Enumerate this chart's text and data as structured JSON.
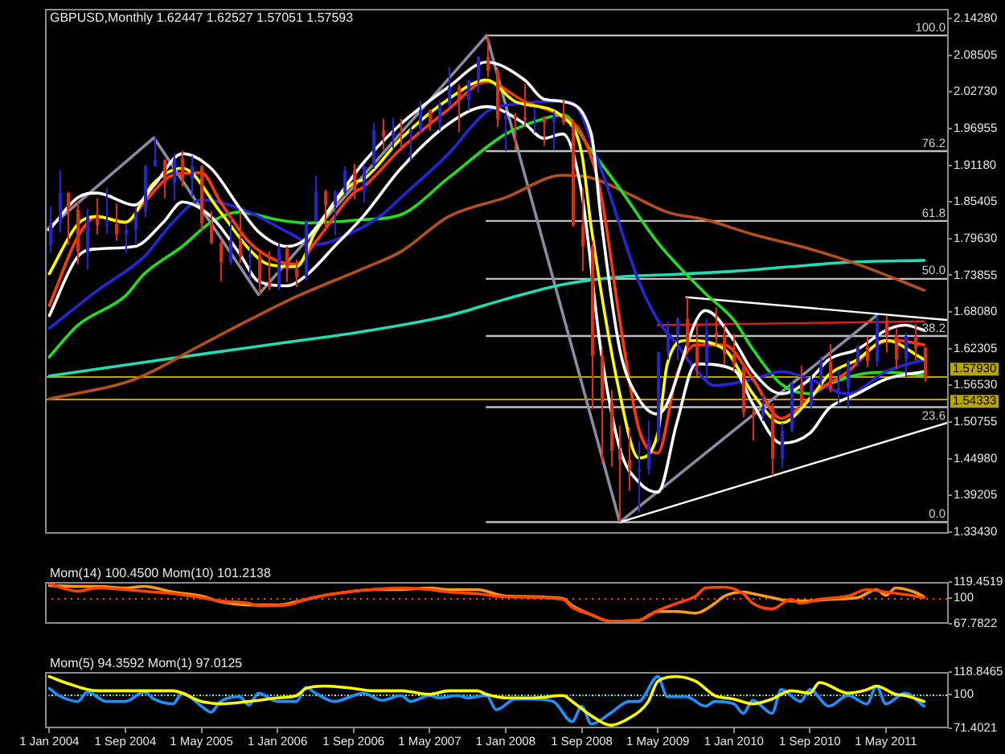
{
  "chart_data": [
    {
      "type": "candlestick",
      "title": "GBPUSD,Monthly 1.62447 1.62527 1.57051 1.57593",
      "x": [
        "2004-01",
        "2004-02",
        "2004-03",
        "2004-04",
        "2004-05",
        "2004-06",
        "2004-07",
        "2004-08",
        "2004-09",
        "2004-10",
        "2004-11",
        "2004-12",
        "2005-01",
        "2005-02",
        "2005-03",
        "2005-04",
        "2005-05",
        "2005-06",
        "2005-07",
        "2005-08",
        "2005-09",
        "2005-10",
        "2005-11",
        "2005-12",
        "2006-01",
        "2006-02",
        "2006-03",
        "2006-04",
        "2006-05",
        "2006-06",
        "2006-07",
        "2006-08",
        "2006-09",
        "2006-10",
        "2006-11",
        "2006-12",
        "2007-01",
        "2007-02",
        "2007-03",
        "2007-04",
        "2007-05",
        "2007-06",
        "2007-07",
        "2007-08",
        "2007-09",
        "2007-10",
        "2007-11",
        "2007-12",
        "2008-01",
        "2008-02",
        "2008-03",
        "2008-04",
        "2008-05",
        "2008-06",
        "2008-07",
        "2008-08",
        "2008-09",
        "2008-10",
        "2008-11",
        "2008-12",
        "2009-01",
        "2009-02",
        "2009-03",
        "2009-04",
        "2009-05",
        "2009-06",
        "2009-07",
        "2009-08",
        "2009-09",
        "2009-10",
        "2009-11",
        "2009-12",
        "2010-01",
        "2010-02",
        "2010-03",
        "2010-04",
        "2010-05",
        "2010-06",
        "2010-07",
        "2010-08",
        "2010-09",
        "2010-10",
        "2010-11",
        "2010-12",
        "2011-01",
        "2011-02",
        "2011-03",
        "2011-04",
        "2011-05",
        "2011-06",
        "2011-07",
        "2011-08",
        "2011-09"
      ],
      "ohlc": [
        [
          1.786,
          1.847,
          1.774,
          1.821
        ],
        [
          1.821,
          1.904,
          1.806,
          1.868
        ],
        [
          1.868,
          1.87,
          1.786,
          1.842
        ],
        [
          1.842,
          1.856,
          1.756,
          1.775
        ],
        [
          1.775,
          1.843,
          1.748,
          1.832
        ],
        [
          1.832,
          1.86,
          1.803,
          1.817
        ],
        [
          1.817,
          1.876,
          1.804,
          1.819
        ],
        [
          1.819,
          1.851,
          1.793,
          1.803
        ],
        [
          1.803,
          1.82,
          1.774,
          1.81
        ],
        [
          1.81,
          1.845,
          1.786,
          1.839
        ],
        [
          1.839,
          1.912,
          1.83,
          1.91
        ],
        [
          1.91,
          1.955,
          1.909,
          1.92
        ],
        [
          1.92,
          1.921,
          1.86,
          1.884
        ],
        [
          1.884,
          1.93,
          1.856,
          1.922
        ],
        [
          1.922,
          1.935,
          1.878,
          1.89
        ],
        [
          1.89,
          1.927,
          1.863,
          1.91
        ],
        [
          1.91,
          1.912,
          1.81,
          1.82
        ],
        [
          1.82,
          1.839,
          1.787,
          1.79
        ],
        [
          1.79,
          1.795,
          1.729,
          1.759
        ],
        [
          1.759,
          1.829,
          1.755,
          1.794
        ],
        [
          1.794,
          1.839,
          1.758,
          1.768
        ],
        [
          1.768,
          1.787,
          1.732,
          1.77
        ],
        [
          1.77,
          1.774,
          1.708,
          1.727
        ],
        [
          1.727,
          1.776,
          1.715,
          1.72
        ],
        [
          1.72,
          1.788,
          1.715,
          1.78
        ],
        [
          1.78,
          1.784,
          1.728,
          1.748
        ],
        [
          1.748,
          1.763,
          1.72,
          1.736
        ],
        [
          1.736,
          1.826,
          1.731,
          1.824
        ],
        [
          1.824,
          1.895,
          1.823,
          1.871
        ],
        [
          1.871,
          1.873,
          1.81,
          1.849
        ],
        [
          1.849,
          1.872,
          1.802,
          1.869
        ],
        [
          1.869,
          1.91,
          1.864,
          1.904
        ],
        [
          1.904,
          1.914,
          1.858,
          1.872
        ],
        [
          1.872,
          1.913,
          1.852,
          1.91
        ],
        [
          1.91,
          1.979,
          1.906,
          1.967
        ],
        [
          1.967,
          1.985,
          1.936,
          1.958
        ],
        [
          1.958,
          1.986,
          1.938,
          1.964
        ],
        [
          1.964,
          1.985,
          1.935,
          1.963
        ],
        [
          1.963,
          1.972,
          1.918,
          1.968
        ],
        [
          1.968,
          2.013,
          1.962,
          1.999
        ],
        [
          1.999,
          2.0,
          1.966,
          1.979
        ],
        [
          1.979,
          2.013,
          1.966,
          2.007
        ],
        [
          2.007,
          2.066,
          2.003,
          2.034
        ],
        [
          2.034,
          2.039,
          1.964,
          2.015
        ],
        [
          2.015,
          2.046,
          1.998,
          2.045
        ],
        [
          2.045,
          2.084,
          2.025,
          2.082
        ],
        [
          2.082,
          2.116,
          2.05,
          2.06
        ],
        [
          2.06,
          2.066,
          1.972,
          1.984
        ],
        [
          1.984,
          1.995,
          1.934,
          1.99
        ],
        [
          1.99,
          1.994,
          1.936,
          1.986
        ],
        [
          1.986,
          2.04,
          1.972,
          1.984
        ],
        [
          1.984,
          2.002,
          1.963,
          1.986
        ],
        [
          1.986,
          1.989,
          1.942,
          1.979
        ],
        [
          1.979,
          1.997,
          1.935,
          1.99
        ],
        [
          1.99,
          2.016,
          1.975,
          1.979
        ],
        [
          1.979,
          1.984,
          1.815,
          1.817
        ],
        [
          1.817,
          1.876,
          1.745,
          1.784
        ],
        [
          1.784,
          1.793,
          1.528,
          1.612
        ],
        [
          1.612,
          1.623,
          1.442,
          1.539
        ],
        [
          1.539,
          1.558,
          1.437,
          1.462
        ],
        [
          1.462,
          1.502,
          1.35,
          1.448
        ],
        [
          1.448,
          1.499,
          1.399,
          1.432
        ],
        [
          1.432,
          1.477,
          1.365,
          1.433
        ],
        [
          1.433,
          1.51,
          1.425,
          1.479
        ],
        [
          1.479,
          1.619,
          1.476,
          1.617
        ],
        [
          1.617,
          1.666,
          1.606,
          1.645
        ],
        [
          1.645,
          1.672,
          1.605,
          1.67
        ],
        [
          1.67,
          1.704,
          1.618,
          1.627
        ],
        [
          1.627,
          1.664,
          1.58,
          1.598
        ],
        [
          1.598,
          1.67,
          1.571,
          1.648
        ],
        [
          1.648,
          1.688,
          1.628,
          1.644
        ],
        [
          1.644,
          1.659,
          1.597,
          1.615
        ],
        [
          1.615,
          1.646,
          1.588,
          1.598
        ],
        [
          1.598,
          1.599,
          1.515,
          1.523
        ],
        [
          1.523,
          1.529,
          1.478,
          1.517
        ],
        [
          1.517,
          1.55,
          1.509,
          1.532
        ],
        [
          1.532,
          1.537,
          1.423,
          1.45
        ],
        [
          1.45,
          1.506,
          1.435,
          1.494
        ],
        [
          1.494,
          1.57,
          1.491,
          1.568
        ],
        [
          1.568,
          1.596,
          1.533,
          1.535
        ],
        [
          1.535,
          1.581,
          1.53,
          1.574
        ],
        [
          1.574,
          1.61,
          1.565,
          1.602
        ],
        [
          1.602,
          1.63,
          1.554,
          1.558
        ],
        [
          1.558,
          1.59,
          1.535,
          1.561
        ],
        [
          1.561,
          1.606,
          1.53,
          1.602
        ],
        [
          1.602,
          1.628,
          1.595,
          1.626
        ],
        [
          1.626,
          1.642,
          1.594,
          1.603
        ],
        [
          1.603,
          1.675,
          1.595,
          1.668
        ],
        [
          1.668,
          1.675,
          1.617,
          1.644
        ],
        [
          1.644,
          1.655,
          1.591,
          1.606
        ],
        [
          1.606,
          1.648,
          1.578,
          1.643
        ],
        [
          1.643,
          1.662,
          1.605,
          1.624
        ],
        [
          1.62447,
          1.62527,
          1.57051,
          1.57593
        ]
      ],
      "colors": [
        "#2424d0",
        "#2424d0",
        "#e02a12",
        "#e02a12",
        "#2424d0",
        "#e02a12",
        "#2424d0",
        "#e02a12",
        "#2424d0",
        "#2424d0",
        "#2424d0",
        "#2424d0",
        "#e02a12",
        "#2424d0",
        "#e02a12",
        "#2424d0",
        "#e02a12",
        "#e02a12",
        "#e02a12",
        "#2424d0",
        "#e02a12",
        "#2424d0",
        "#e02a12",
        "#e02a12",
        "#2424d0",
        "#e02a12",
        "#e02a12",
        "#2424d0",
        "#2424d0",
        "#e02a12",
        "#2424d0",
        "#2424d0",
        "#e02a12",
        "#2424d0",
        "#2424d0",
        "#e02a12",
        "#2424d0",
        "#e02a12",
        "#2424d0",
        "#2424d0",
        "#e02a12",
        "#2424d0",
        "#2424d0",
        "#e02a12",
        "#2424d0",
        "#2424d0",
        "#e02a12",
        "#e02a12",
        "#2424d0",
        "#e02a12",
        "#e02a12",
        "#2424d0",
        "#e02a12",
        "#2424d0",
        "#e02a12",
        "#e02a12",
        "#e02a12",
        "#e02a12",
        "#e02a12",
        "#e02a12",
        "#e02a12",
        "#e02a12",
        "#2424d0",
        "#2424d0",
        "#2424d0",
        "#2424d0",
        "#2424d0",
        "#e02a12",
        "#e02a12",
        "#2424d0",
        "#e02a12",
        "#e02a12",
        "#e02a12",
        "#e02a12",
        "#e02a12",
        "#2424d0",
        "#e02a12",
        "#2424d0",
        "#2424d0",
        "#e02a12",
        "#2424d0",
        "#2424d0",
        "#e02a12",
        "#2424d0",
        "#2424d0",
        "#2424d0",
        "#e02a12",
        "#2424d0",
        "#e02a12",
        "#e02a12",
        "#2424d0",
        "#e02a12",
        "#e02a12"
      ],
      "series": [
        {
          "type": "line",
          "color": "#ffffff",
          "x": [
            "2004-01",
            "2004-04",
            "2004-06",
            "2004-10",
            "2004-12",
            "2005-03",
            "2005-06",
            "2005-09",
            "2005-11",
            "2006-02",
            "2006-04",
            "2006-07",
            "2006-10",
            "2007-02",
            "2007-07",
            "2007-11",
            "2008-03",
            "2008-05",
            "2008-07",
            "2008-10",
            "2008-11",
            "2009-01",
            "2009-03",
            "2009-05",
            "2009-10",
            "2010-01",
            "2010-03",
            "2010-06",
            "2010-09",
            "2010-11",
            "2011-02",
            "2011-05",
            "2011-07",
            "2011-09"
          ],
          "values": [
            1.81,
            1.861,
            1.868,
            1.849,
            1.88,
            1.93,
            1.907,
            1.845,
            1.807,
            1.784,
            1.796,
            1.854,
            1.915,
            1.977,
            2.035,
            2.074,
            2.046,
            2.016,
            2.012,
            1.961,
            1.831,
            1.622,
            1.544,
            1.52,
            1.683,
            1.636,
            1.587,
            1.552,
            1.575,
            1.606,
            1.622,
            1.652,
            1.66,
            1.652
          ]
        },
        {
          "type": "line",
          "color": "#ffffff",
          "x": [
            "2004-01",
            "2004-04",
            "2004-06",
            "2004-10",
            "2005-01",
            "2005-03",
            "2005-06",
            "2005-09",
            "2005-11",
            "2006-02",
            "2006-04",
            "2006-07",
            "2006-10",
            "2007-02",
            "2007-07",
            "2007-11",
            "2008-03",
            "2008-05",
            "2008-07",
            "2008-09",
            "2008-11",
            "2009-01",
            "2009-03",
            "2009-05",
            "2009-07",
            "2009-09",
            "2010-01",
            "2010-03",
            "2010-06",
            "2010-09",
            "2010-11",
            "2011-02",
            "2011-05",
            "2011-09"
          ],
          "values": [
            1.675,
            1.768,
            1.78,
            1.784,
            1.822,
            1.854,
            1.831,
            1.773,
            1.729,
            1.722,
            1.738,
            1.784,
            1.831,
            1.907,
            1.977,
            2.004,
            1.977,
            1.954,
            1.961,
            1.868,
            1.622,
            1.466,
            1.413,
            1.397,
            1.506,
            1.599,
            1.59,
            1.536,
            1.474,
            1.49,
            1.529,
            1.552,
            1.575,
            1.587
          ]
        },
        {
          "type": "line",
          "color": "#ffff00",
          "x": [
            "2004-01",
            "2004-04",
            "2004-06",
            "2004-09",
            "2004-12",
            "2005-03",
            "2005-07",
            "2005-10",
            "2005-12",
            "2006-03",
            "2006-05",
            "2006-09",
            "2006-10",
            "2007-02",
            "2007-07",
            "2007-11",
            "2008-02",
            "2008-07",
            "2008-09",
            "2008-10",
            "2009-01",
            "2009-03",
            "2009-05",
            "2009-06",
            "2009-08",
            "2009-12",
            "2010-03",
            "2010-06",
            "2010-09",
            "2010-11",
            "2011-02",
            "2011-05",
            "2011-09"
          ],
          "values": [
            1.741,
            1.819,
            1.831,
            1.822,
            1.884,
            1.907,
            1.838,
            1.78,
            1.756,
            1.752,
            1.807,
            1.884,
            1.889,
            1.954,
            2.016,
            2.046,
            2.012,
            1.988,
            1.93,
            1.814,
            1.552,
            1.451,
            1.49,
            1.599,
            1.636,
            1.622,
            1.552,
            1.506,
            1.544,
            1.582,
            1.606,
            1.636,
            1.606
          ]
        },
        {
          "type": "line",
          "color": "#ff3a0a",
          "x": [
            "2004-01",
            "2004-04",
            "2004-06",
            "2004-09",
            "2004-11",
            "2005-02",
            "2005-05",
            "2005-07",
            "2005-10",
            "2006-01",
            "2006-03",
            "2006-05",
            "2006-09",
            "2006-10",
            "2007-02",
            "2007-07",
            "2007-11",
            "2008-03",
            "2008-07",
            "2008-09",
            "2008-11",
            "2009-01",
            "2009-03",
            "2009-05",
            "2009-07",
            "2009-09",
            "2009-12",
            "2010-03",
            "2010-06",
            "2010-07",
            "2010-10",
            "2011-01",
            "2011-04",
            "2011-06",
            "2011-09"
          ],
          "values": [
            1.691,
            1.799,
            1.831,
            1.822,
            1.854,
            1.896,
            1.9,
            1.854,
            1.791,
            1.761,
            1.756,
            1.791,
            1.868,
            1.877,
            1.938,
            2.0,
            2.043,
            2.012,
            1.988,
            1.961,
            1.868,
            1.668,
            1.497,
            1.459,
            1.582,
            1.629,
            1.629,
            1.575,
            1.513,
            1.52,
            1.559,
            1.587,
            1.629,
            1.636,
            1.629
          ]
        },
        {
          "type": "line",
          "color": "#2626d8",
          "x": [
            "2004-01",
            "2004-06",
            "2004-11",
            "2005-02",
            "2005-05",
            "2005-10",
            "2006-02",
            "2006-05",
            "2006-09",
            "2006-12",
            "2007-02",
            "2007-07",
            "2007-11",
            "2008-02",
            "2008-07",
            "2008-08",
            "2008-11",
            "2009-03",
            "2009-05",
            "2009-07",
            "2009-09",
            "2009-11",
            "2010-03",
            "2010-06",
            "2010-09",
            "2011-01",
            "2011-05",
            "2011-09"
          ],
          "values": [
            1.655,
            1.714,
            1.768,
            1.822,
            1.857,
            1.838,
            1.807,
            1.787,
            1.807,
            1.834,
            1.861,
            1.93,
            1.996,
            2.008,
            2.012,
            2.01,
            1.907,
            1.729,
            1.668,
            1.63,
            1.59,
            1.565,
            1.575,
            1.587,
            1.575,
            1.552,
            1.587,
            1.606
          ]
        },
        {
          "type": "line",
          "color": "#22dd22",
          "x": [
            "2004-01",
            "2004-04",
            "2004-09",
            "2004-11",
            "2005-03",
            "2005-06",
            "2005-09",
            "2006-01",
            "2006-04",
            "2006-10",
            "2007-02",
            "2007-07",
            "2008-01",
            "2008-05",
            "2008-07",
            "2008-10",
            "2009-01",
            "2009-05",
            "2009-10",
            "2010-01",
            "2010-03",
            "2010-06",
            "2010-09",
            "2010-11",
            "2011-02",
            "2011-05",
            "2011-09"
          ],
          "values": [
            1.61,
            1.66,
            1.706,
            1.741,
            1.784,
            1.822,
            1.838,
            1.826,
            1.821,
            1.826,
            1.834,
            1.892,
            1.961,
            1.985,
            1.991,
            1.935,
            1.875,
            1.79,
            1.71,
            1.668,
            1.622,
            1.567,
            1.552,
            1.567,
            1.582,
            1.586,
            1.581
          ]
        },
        {
          "type": "line",
          "color": "#b4501e",
          "x": [
            "2004-01",
            "2004-10",
            "2005-05",
            "2005-10",
            "2006-03",
            "2006-10",
            "2007-02",
            "2007-07",
            "2008-01",
            "2008-07",
            "2008-10",
            "2009-02",
            "2009-06",
            "2009-10",
            "2010-03",
            "2010-09",
            "2011-02",
            "2011-09"
          ],
          "values": [
            1.544,
            1.575,
            1.629,
            1.668,
            1.705,
            1.749,
            1.776,
            1.831,
            1.861,
            1.896,
            1.892,
            1.866,
            1.838,
            1.826,
            1.803,
            1.78,
            1.756,
            1.715
          ]
        },
        {
          "type": "line",
          "color": "#22dcb4",
          "x": [
            "2004-01",
            "2005-01",
            "2006-01",
            "2006-10",
            "2007-07",
            "2008-01",
            "2008-07",
            "2009-01",
            "2009-07",
            "2010-01",
            "2010-07",
            "2011-01",
            "2011-09"
          ],
          "values": [
            1.58,
            1.606,
            1.631,
            1.65,
            1.675,
            1.701,
            1.724,
            1.736,
            1.74,
            1.745,
            1.752,
            1.759,
            1.762
          ]
        },
        {
          "type": "line",
          "color": "#e02020",
          "x": [
            "2009-05",
            "2011-09"
          ],
          "values": [
            1.66,
            1.666
          ]
        },
        {
          "type": "line",
          "color": "#ffffff",
          "x": [
            "2009-08",
            "2011-11-19"
          ],
          "values": [
            1.704,
            1.668
          ]
        },
        {
          "type": "line",
          "color": "#ffffff",
          "x": [
            "2009-01",
            "2011-11-19"
          ],
          "values": [
            1.35,
            1.507
          ]
        },
        {
          "type": "line",
          "color": "#8a8aa0",
          "x": [
            "2003-12-18",
            "2004-12",
            "2005-11",
            "2007-11",
            "2009-01",
            "2011-04"
          ],
          "values": [
            1.808,
            1.955,
            1.708,
            2.116,
            1.35,
            1.675
          ]
        },
        {
          "type": "line",
          "color": "#c0c0c0",
          "x": [
            "2007-11",
            "2011-11-19"
          ],
          "values": [
            2.116,
            2.116
          ]
        },
        {
          "type": "line",
          "color": "#c0c0c0",
          "x": [
            "2007-11",
            "2011-11-19"
          ],
          "values": [
            1.934,
            1.934
          ]
        },
        {
          "type": "line",
          "color": "#c0c0c0",
          "x": [
            "2007-11",
            "2011-11-19"
          ],
          "values": [
            1.824,
            1.824
          ]
        },
        {
          "type": "line",
          "color": "#c0c0c0",
          "x": [
            "2007-11",
            "2011-11-19"
          ],
          "values": [
            1.733,
            1.733
          ]
        },
        {
          "type": "line",
          "color": "#c0c0c0",
          "x": [
            "2007-11",
            "2011-11-19"
          ],
          "values": [
            1.643,
            1.643
          ]
        },
        {
          "type": "line",
          "color": "#c0c0c0",
          "x": [
            "2007-11",
            "2011-11-19"
          ],
          "values": [
            1.531,
            1.531
          ]
        },
        {
          "type": "line",
          "color": "#c0c0c0",
          "x": [
            "2007-11",
            "2011-11-19"
          ],
          "values": [
            1.35,
            1.35
          ]
        }
      ],
      "annotations": [
        {
          "text": "100.0",
          "x": "2011-11-19",
          "y": 2.116
        },
        {
          "text": "76.2",
          "x": "2011-11-19",
          "y": 1.934
        },
        {
          "text": "61.8",
          "x": "2011-11-19",
          "y": 1.824
        },
        {
          "text": "50.0",
          "x": "2011-11-19",
          "y": 1.733
        },
        {
          "text": "38.2",
          "x": "2011-11-19",
          "y": 1.643
        },
        {
          "text": "23.6",
          "x": "2011-11-19",
          "y": 1.531
        },
        {
          "text": "0.0",
          "x": "2011-11-19",
          "y": 1.35
        }
      ],
      "ref_lines": [
        {
          "axis": "y",
          "value": 1.5793,
          "label": "1.57930",
          "color": "#b8a400"
        },
        {
          "axis": "y",
          "value": 1.54333,
          "label": "1.54333",
          "color": "#b8a400"
        }
      ],
      "xlim": [
        "2003-12-18",
        "2011-11-19"
      ],
      "ylim": [
        1.3317,
        2.1579
      ],
      "yticks": [
        {
          "value": 2.1428,
          "label": "2.14280"
        },
        {
          "value": 2.08505,
          "label": "2.08505"
        },
        {
          "value": 2.0273,
          "label": "2.02730"
        },
        {
          "value": 1.96955,
          "label": "1.96955"
        },
        {
          "value": 1.9118,
          "label": "1.91180"
        },
        {
          "value": 1.85405,
          "label": "1.85405"
        },
        {
          "value": 1.7963,
          "label": "1.79630"
        },
        {
          "value": 1.73855,
          "label": "1.73855"
        },
        {
          "value": 1.6808,
          "label": "1.68080"
        },
        {
          "value": 1.62305,
          "label": "1.62305"
        },
        {
          "value": 1.5653,
          "label": "1.56530"
        },
        {
          "value": 1.50755,
          "label": "1.50755"
        },
        {
          "value": 1.4498,
          "label": "1.44980"
        },
        {
          "value": 1.39205,
          "label": "1.39205"
        },
        {
          "value": 1.3343,
          "label": "1.33430"
        }
      ],
      "tick_labels": "y"
    },
    {
      "type": "line",
      "title": "Mom(14) 100.4500 Mom(10) 101.2138",
      "series": [
        {
          "color": "#ff4500",
          "x": [
            "2004-01",
            "2004-04",
            "2004-06",
            "2004-09",
            "2004-11",
            "2005-02",
            "2005-05",
            "2005-07",
            "2005-10",
            "2005-11",
            "2006-02",
            "2006-04",
            "2006-06",
            "2006-09",
            "2006-11",
            "2007-02",
            "2007-05",
            "2007-07",
            "2007-10",
            "2008-01",
            "2008-07",
            "2008-08",
            "2008-10",
            "2008-12",
            "2009-03",
            "2009-05",
            "2009-07",
            "2009-09",
            "2009-10",
            "2009-12",
            "2010-02",
            "2010-03",
            "2010-05",
            "2010-07",
            "2010-08",
            "2010-10",
            "2011-01",
            "2011-03",
            "2011-05",
            "2011-07",
            "2011-09"
          ],
          "values": [
            117,
            108,
            112,
            110,
            108,
            105,
            100,
            96,
            93,
            90,
            91,
            98,
            103,
            108,
            110,
            112,
            110,
            107,
            105,
            101,
            98,
            88,
            79,
            71,
            72,
            84,
            93,
            102,
            112,
            113,
            105,
            93,
            86,
            98,
            93,
            98,
            102,
            110,
            107,
            104,
            100
          ]
        },
        {
          "color": "#ff9a1e",
          "x": [
            "2004-01",
            "2004-04",
            "2004-06",
            "2004-09",
            "2004-11",
            "2005-02",
            "2005-05",
            "2005-07",
            "2005-10",
            "2006-01",
            "2006-03",
            "2006-06",
            "2006-09",
            "2006-11",
            "2007-02",
            "2007-05",
            "2007-07",
            "2007-10",
            "2008-01",
            "2008-07",
            "2008-08",
            "2008-10",
            "2008-12",
            "2009-03",
            "2009-05",
            "2009-07",
            "2009-09",
            "2009-11",
            "2009-12",
            "2010-02",
            "2010-03",
            "2010-05",
            "2010-07",
            "2010-09",
            "2010-11",
            "2011-02",
            "2011-04",
            "2011-05",
            "2011-06",
            "2011-08",
            "2011-09"
          ],
          "values": [
            115,
            114,
            114,
            112,
            114,
            107,
            102,
            95,
            91,
            91,
            95,
            103,
            108,
            110,
            110,
            112,
            110,
            110,
            102,
            99,
            90,
            79,
            71,
            72,
            83,
            83,
            81,
            93,
            102,
            107,
            105,
            100,
            96,
            96,
            98,
            100,
            110,
            103,
            112,
            107,
            101
          ]
        }
      ],
      "ref_lines": [
        {
          "axis": "y",
          "value": 100,
          "color": "#ff4500",
          "line_style": "dotted"
        }
      ],
      "xlim": [
        "2003-12-18",
        "2011-11-19"
      ],
      "ylim": [
        67.7822,
        119.4519
      ],
      "yticks": [
        67.7822,
        100,
        119.4519
      ],
      "tick_labels": "y"
    },
    {
      "type": "line",
      "title": "Mom(5) 94.3592 Mom(1) 97.0125",
      "series": [
        {
          "color": "#ffff00",
          "x": [
            "2004-01",
            "2004-03",
            "2004-06",
            "2004-09",
            "2004-11",
            "2005-02",
            "2005-05",
            "2005-07",
            "2005-10",
            "2006-01",
            "2006-03",
            "2006-04",
            "2006-06",
            "2006-09",
            "2006-11",
            "2007-02",
            "2007-05",
            "2007-07",
            "2007-10",
            "2007-11",
            "2008-01",
            "2008-04",
            "2008-07",
            "2008-08",
            "2008-10",
            "2008-12",
            "2009-02",
            "2009-04",
            "2009-05",
            "2009-07",
            "2009-09",
            "2009-11",
            "2010-01",
            "2010-03",
            "2010-05",
            "2010-07",
            "2010-09",
            "2010-10",
            "2011-01",
            "2011-03",
            "2011-04",
            "2011-06",
            "2011-07",
            "2011-09"
          ],
          "values": [
            115,
            109,
            103,
            103,
            103,
            103,
            94,
            92,
            94,
            97,
            99,
            105,
            107,
            105,
            103,
            103,
            100,
            103,
            103,
            100,
            97,
            97,
            99,
            94,
            82,
            74,
            80,
            94,
            111,
            115,
            111,
            99,
            96,
            92,
            96,
            103,
            101,
            110,
            101,
            104,
            107,
            100,
            99,
            94
          ]
        },
        {
          "color": "#1e90ff",
          "x": [
            "2004-01",
            "2004-02",
            "2004-04",
            "2004-05",
            "2004-07",
            "2004-09",
            "2004-11",
            "2004-12",
            "2005-02",
            "2005-03",
            "2005-05",
            "2005-06",
            "2005-07",
            "2005-09",
            "2005-10",
            "2005-11",
            "2006-01",
            "2006-03",
            "2006-04",
            "2006-05",
            "2006-07",
            "2006-09",
            "2006-10",
            "2006-12",
            "2007-02",
            "2007-03",
            "2007-05",
            "2007-06",
            "2007-08",
            "2007-09",
            "2007-11",
            "2007-12",
            "2008-02",
            "2008-04",
            "2008-06",
            "2008-08",
            "2008-09",
            "2008-10",
            "2008-12",
            "2009-02",
            "2009-03",
            "2009-05",
            "2009-06",
            "2009-08",
            "2009-10",
            "2009-11",
            "2010-01",
            "2010-02",
            "2010-03",
            "2010-05",
            "2010-06",
            "2010-08",
            "2010-09",
            "2010-11",
            "2011-01",
            "2011-03",
            "2011-04",
            "2011-05",
            "2011-07",
            "2011-09"
          ],
          "values": [
            105,
            99,
            94,
            102,
            94,
            94,
            102,
            96,
            92,
            101,
            90,
            85,
            94,
            98,
            91,
            101,
            94,
            94,
            106,
            101,
            94,
            99,
            101,
            95,
            99,
            94,
            99,
            97,
            99,
            97,
            99,
            87,
            96,
            96,
            94,
            77,
            90,
            75,
            84,
            94,
            94,
            115,
            98,
            98,
            90,
            94,
            92,
            84,
            95,
            84,
            104,
            94,
            104,
            90,
            99,
            92,
            107,
            92,
            101,
            90
          ]
        }
      ],
      "ref_lines": [
        {
          "axis": "y",
          "value": 100,
          "color": "#ffff00",
          "line_style": "dotted"
        },
        {
          "axis": "y",
          "value": 100,
          "color": "#1e90ff",
          "line_style": "dotted"
        }
      ],
      "xlim": [
        "2003-12-18",
        "2011-11-19"
      ],
      "ylim": [
        71.4021,
        118.8465
      ],
      "yticks": [
        71.4021,
        100,
        118.8465
      ],
      "xticks": [
        {
          "value": "2004-01",
          "label": "1 Jan 2004"
        },
        {
          "value": "2004-09",
          "label": "1 Sep 2004"
        },
        {
          "value": "2005-05",
          "label": "1 May 2005"
        },
        {
          "value": "2006-01",
          "label": "1 Jan 2006"
        },
        {
          "value": "2006-09",
          "label": "1 Sep 2006"
        },
        {
          "value": "2007-05",
          "label": "1 May 2007"
        },
        {
          "value": "2008-01",
          "label": "1 Jan 2008"
        },
        {
          "value": "2008-09",
          "label": "1 Sep 2008"
        },
        {
          "value": "2009-05",
          "label": "1 May 2009"
        },
        {
          "value": "2010-01",
          "label": "1 Jan 2010"
        },
        {
          "value": "2010-09",
          "label": "1 Sep 2010"
        },
        {
          "value": "2011-05",
          "label": "1 May 2011"
        }
      ]
    }
  ]
}
